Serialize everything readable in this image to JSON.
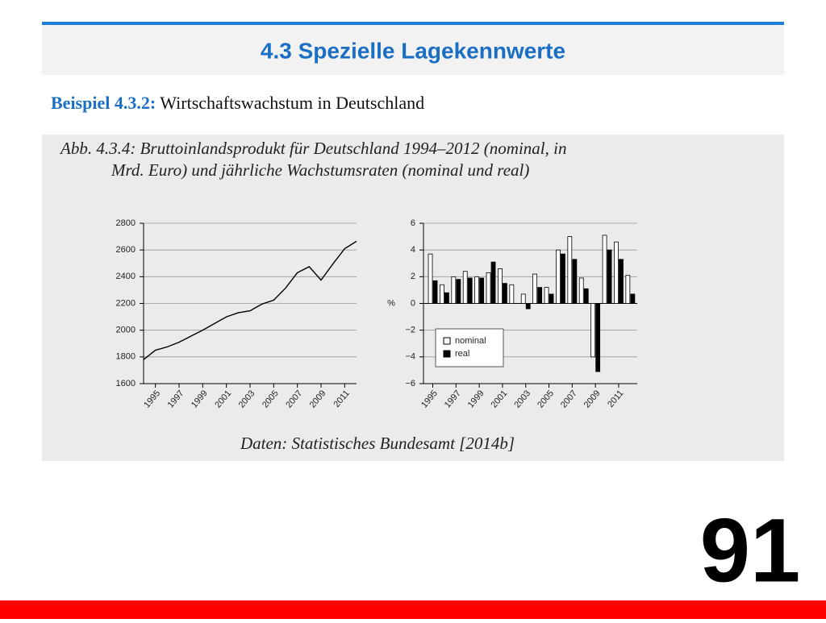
{
  "slide_title": "4.3 Spezielle Lagekennwerte",
  "example_label": "Beispiel 4.3.2:",
  "example_text": "Wirtschaftswachstum in Deutschland",
  "caption_lines": [
    "Abb. 4.3.4: Bruttoinlandsprodukt für Deutschland 1994–2012 (nominal, in",
    "Mrd. Euro) und jährliche Wachstumsraten (nominal und real)"
  ],
  "source": "Daten: Statistisches Bundesamt [2014b]",
  "page_number": "91",
  "chart_data": [
    {
      "type": "line",
      "x": [
        1994,
        1995,
        1996,
        1997,
        1998,
        1999,
        2000,
        2001,
        2002,
        2003,
        2004,
        2005,
        2006,
        2007,
        2008,
        2009,
        2010,
        2011,
        2012
      ],
      "values": [
        1780,
        1850,
        1875,
        1910,
        1955,
        2000,
        2050,
        2100,
        2130,
        2145,
        2195,
        2225,
        2315,
        2430,
        2475,
        2375,
        2495,
        2610,
        2665
      ],
      "color": "#000000",
      "xlim": [
        1994,
        2012
      ],
      "xticks": [
        1995,
        1997,
        1999,
        2001,
        2003,
        2005,
        2007,
        2009,
        2011
      ],
      "ylim": [
        1600,
        2800
      ],
      "yticks": [
        1600,
        1800,
        2000,
        2200,
        2400,
        2600,
        2800
      ],
      "grid": true
    },
    {
      "type": "bar",
      "x": [
        1995,
        1996,
        1997,
        1998,
        1999,
        2000,
        2001,
        2002,
        2003,
        2004,
        2005,
        2006,
        2007,
        2008,
        2009,
        2010,
        2011,
        2012
      ],
      "xlim": [
        1994.2,
        2012.6
      ],
      "xticks": [
        1995,
        1997,
        1999,
        2001,
        2003,
        2005,
        2007,
        2009,
        2011
      ],
      "ylabel": "%",
      "ylim": [
        -6,
        6
      ],
      "yticks": [
        {
          "value": -6,
          "label": "−6"
        },
        {
          "value": -4,
          "label": "−4"
        },
        {
          "value": -2,
          "label": "−2"
        },
        0,
        2,
        4,
        6
      ],
      "grid": true,
      "legend": "lower left",
      "series": [
        {
          "name": "nominal",
          "color": "#ffffff",
          "values": [
            3.7,
            1.4,
            2.0,
            2.4,
            2.0,
            2.3,
            2.6,
            1.4,
            0.7,
            2.2,
            1.2,
            4.0,
            5.0,
            1.9,
            -4.0,
            5.1,
            4.6,
            2.1
          ]
        },
        {
          "name": "real",
          "color": "#000000",
          "values": [
            1.7,
            0.8,
            1.8,
            1.9,
            1.9,
            3.1,
            1.5,
            0.0,
            -0.4,
            1.2,
            0.7,
            3.7,
            3.3,
            1.1,
            -5.1,
            4.0,
            3.3,
            0.7
          ]
        }
      ]
    }
  ]
}
